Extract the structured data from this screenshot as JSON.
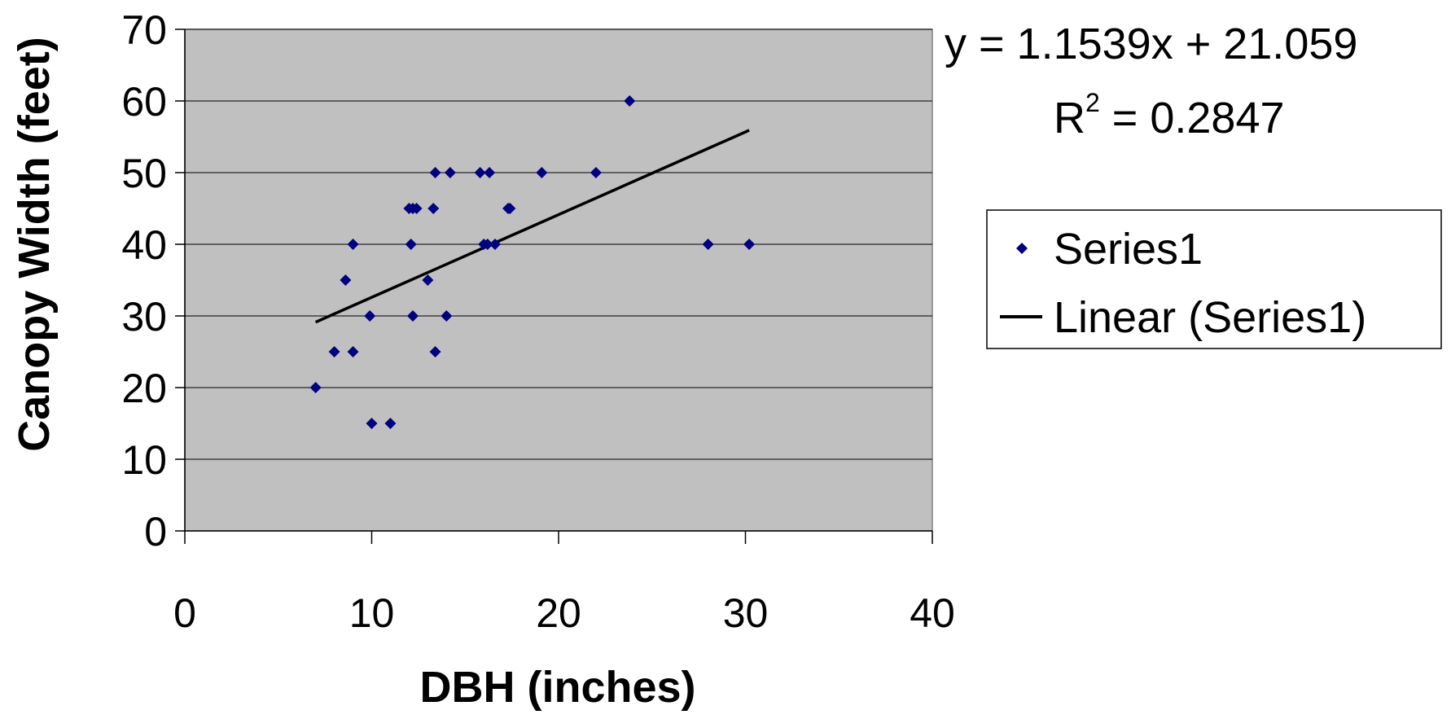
{
  "chart_data": {
    "type": "scatter",
    "xlabel": "DBH (inches)",
    "ylabel": "Canopy Width (feet)",
    "xlim": [
      0,
      40
    ],
    "ylim": [
      0,
      70
    ],
    "x_ticks": [
      "0",
      "10",
      "20",
      "30",
      "40"
    ],
    "y_ticks": [
      "0",
      "10",
      "20",
      "30",
      "40",
      "50",
      "60",
      "70"
    ],
    "grid": "horizontal",
    "plot_background": "#C0C0C0",
    "series": [
      {
        "name": "Series1",
        "marker": "diamond",
        "color": "#000080",
        "points": [
          {
            "x": 7.0,
            "y": 20
          },
          {
            "x": 8.0,
            "y": 25
          },
          {
            "x": 8.6,
            "y": 35
          },
          {
            "x": 9.0,
            "y": 25
          },
          {
            "x": 9.0,
            "y": 40
          },
          {
            "x": 9.9,
            "y": 30
          },
          {
            "x": 10.0,
            "y": 15
          },
          {
            "x": 11.0,
            "y": 15
          },
          {
            "x": 12.0,
            "y": 45
          },
          {
            "x": 12.1,
            "y": 40
          },
          {
            "x": 12.2,
            "y": 30
          },
          {
            "x": 12.2,
            "y": 45
          },
          {
            "x": 12.4,
            "y": 45
          },
          {
            "x": 13.0,
            "y": 35
          },
          {
            "x": 13.3,
            "y": 45
          },
          {
            "x": 13.4,
            "y": 25
          },
          {
            "x": 13.4,
            "y": 50
          },
          {
            "x": 14.0,
            "y": 30
          },
          {
            "x": 14.2,
            "y": 50
          },
          {
            "x": 15.8,
            "y": 50
          },
          {
            "x": 16.0,
            "y": 40
          },
          {
            "x": 16.2,
            "y": 40
          },
          {
            "x": 16.3,
            "y": 50
          },
          {
            "x": 16.6,
            "y": 40
          },
          {
            "x": 17.3,
            "y": 45
          },
          {
            "x": 17.4,
            "y": 45
          },
          {
            "x": 19.1,
            "y": 50
          },
          {
            "x": 22.0,
            "y": 50
          },
          {
            "x": 23.8,
            "y": 60
          },
          {
            "x": 28.0,
            "y": 40
          },
          {
            "x": 30.2,
            "y": 40
          }
        ]
      },
      {
        "name": "Linear (Series1)",
        "type": "trendline",
        "color": "#000000",
        "slope": 1.1539,
        "intercept": 21.059,
        "x_range": [
          7.0,
          30.2
        ]
      }
    ],
    "equation": "y = 1.1539x + 21.059",
    "r_squared_prefix": "R",
    "r_squared_sup": "2",
    "r_squared_value": " = 0.2847",
    "legend": {
      "position": "right",
      "entries": [
        "Series1",
        "Linear (Series1)"
      ]
    }
  }
}
